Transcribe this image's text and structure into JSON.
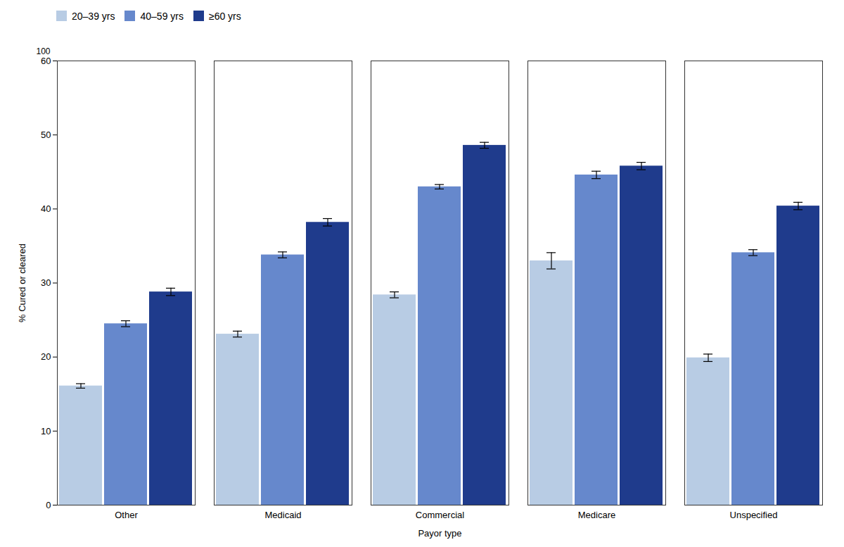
{
  "chart_data": {
    "type": "bar",
    "xlabel": "Payor type",
    "ylabel": "% Cured or cleared",
    "categories": [
      "Other",
      "Medicaid",
      "Commercial",
      "Medicare",
      "Unspecified"
    ],
    "series": [
      {
        "name": "20–39 yrs",
        "color": "#b8cce4",
        "values": [
          16.1,
          23.1,
          28.4,
          33.0,
          19.9
        ],
        "errors": [
          0.3,
          0.4,
          0.4,
          1.1,
          0.5
        ]
      },
      {
        "name": "40–59 yrs",
        "color": "#6688cc",
        "values": [
          24.5,
          33.8,
          43.0,
          44.6,
          34.1
        ],
        "errors": [
          0.4,
          0.4,
          0.3,
          0.5,
          0.4
        ]
      },
      {
        "name": "≥60 yrs",
        "color": "#1f3b8c",
        "values": [
          28.8,
          38.2,
          48.6,
          45.8,
          40.4
        ],
        "errors": [
          0.5,
          0.5,
          0.4,
          0.5,
          0.5
        ]
      }
    ],
    "ylim": [
      0,
      60
    ],
    "yticks": [
      0,
      10,
      20,
      30,
      40,
      50,
      60
    ],
    "annotations": [
      "100"
    ],
    "legend": "top",
    "grid": false
  }
}
